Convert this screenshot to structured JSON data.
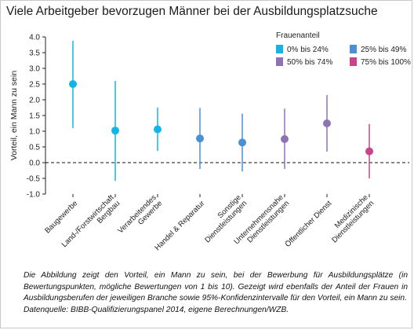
{
  "title": "Viele Arbeitgeber bevorzugen Männer bei der Ausbildungsplatzsuche",
  "caption": "Die Abbildung zeigt den Vorteil, ein Mann zu sein, bei der Bewerbung für Ausbildungsplätze (in Bewertungspunkten, mögliche Bewertungen von 1 bis 10). Gezeigt wird ebenfalls der Anteil der Frauen in Ausbildungsberufen der jeweiligen Branche sowie 95%-Konfidenzintervalle für den Vorteil, ein Mann zu sein.",
  "source": "Datenquelle: BIBB-Qualifizierungspanel 2014, eigene Berechnungen/WZB.",
  "chart_data": {
    "type": "scatter",
    "ylabel": "Vorteil, ein Mann zu sein",
    "ylim": [
      -1.0,
      4.0
    ],
    "yticks": [
      "-1.0",
      "-0.5",
      "0.0",
      "0.5",
      "1.0",
      "1.5",
      "2.0",
      "2.5",
      "3.0",
      "3.5",
      "4.0"
    ],
    "ytick_values": [
      -1.0,
      -0.5,
      0.0,
      0.5,
      1.0,
      1.5,
      2.0,
      2.5,
      3.0,
      3.5,
      4.0
    ],
    "reference_line": 0.0,
    "grid": false,
    "legend": {
      "title": "Frauenanteil",
      "placement": "top-right",
      "items": [
        {
          "label": "0% bis 24%",
          "color": "#13b4e8"
        },
        {
          "label": "25% bis 49%",
          "color": "#4b8fd4"
        },
        {
          "label": "50% bis 74%",
          "color": "#8e72b4"
        },
        {
          "label": "75% bis 100%",
          "color": "#c8458c"
        }
      ]
    },
    "points": [
      {
        "label": [
          "Baugewerbe"
        ],
        "value": 2.5,
        "ci": [
          1.1,
          3.88
        ],
        "group": 0
      },
      {
        "label": [
          "Land-/Forstwirtschaft",
          "Bergbau"
        ],
        "value": 1.02,
        "ci": [
          -0.58,
          2.6
        ],
        "group": 0
      },
      {
        "label": [
          "Verarbeitendes",
          "Gewerbe"
        ],
        "value": 1.06,
        "ci": [
          0.37,
          1.75
        ],
        "group": 0
      },
      {
        "label": [
          "Handel & Reparatur"
        ],
        "value": 0.77,
        "ci": [
          -0.2,
          1.74
        ],
        "group": 1
      },
      {
        "label": [
          "Sonstige",
          "Dienstleistungen"
        ],
        "value": 0.64,
        "ci": [
          -0.28,
          1.56
        ],
        "group": 1
      },
      {
        "label": [
          "Unternehmensnahe",
          "Dienstleistungen"
        ],
        "value": 0.75,
        "ci": [
          -0.2,
          1.72
        ],
        "group": 2
      },
      {
        "label": [
          "Öffentlicher Dienst"
        ],
        "value": 1.25,
        "ci": [
          0.35,
          2.15
        ],
        "group": 2
      },
      {
        "label": [
          "Medizinische",
          "Dienstleistungen"
        ],
        "value": 0.36,
        "ci": [
          -0.5,
          1.23
        ],
        "group": 3
      }
    ]
  }
}
